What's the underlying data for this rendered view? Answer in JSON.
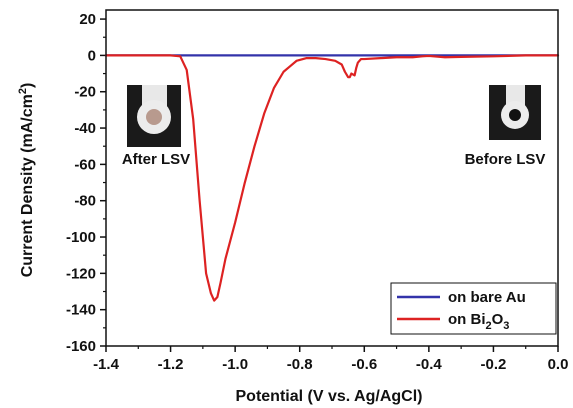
{
  "chart_data": {
    "type": "line",
    "xlabel": "Potential (V vs. Ag/AgCl)",
    "ylabel_main": "Current Density (mA/cm",
    "ylabel_sup": "2",
    "ylabel_close": ")",
    "xlim": [
      -1.4,
      0.0
    ],
    "ylim": [
      -160,
      25
    ],
    "x_ticks": [
      -1.4,
      -1.2,
      -1.0,
      -0.8,
      -0.6,
      -0.4,
      -0.2,
      0.0
    ],
    "x_tick_labels": [
      "-1.4",
      "-1.2",
      "-1.0",
      "-0.8",
      "-0.6",
      "-0.4",
      "-0.2",
      "0.0"
    ],
    "y_ticks": [
      20,
      0,
      -20,
      -40,
      -60,
      -80,
      -100,
      -120,
      -140,
      -160
    ],
    "y_tick_labels": [
      "20",
      "0",
      "-20",
      "-40",
      "-60",
      "-80",
      "-100",
      "-120",
      "-140",
      "-160"
    ],
    "grid": false,
    "legend_position": "bottom-right",
    "series": [
      {
        "name": "on bare Au",
        "color": "#3333aa",
        "x": [
          -1.4,
          -1.2,
          -1.0,
          -0.8,
          -0.6,
          -0.4,
          -0.2,
          0.0
        ],
        "y": [
          0,
          0,
          0,
          0,
          0,
          0,
          0,
          0
        ]
      },
      {
        "name_main": "on Bi",
        "name_sub1": "2",
        "name_mid": "O",
        "name_sub2": "3",
        "color": "#dd2222",
        "x": [
          -1.4,
          -1.2,
          -1.17,
          -1.15,
          -1.13,
          -1.11,
          -1.09,
          -1.075,
          -1.065,
          -1.055,
          -1.045,
          -1.03,
          -1.0,
          -0.97,
          -0.94,
          -0.91,
          -0.88,
          -0.85,
          -0.83,
          -0.81,
          -0.79,
          -0.78,
          -0.77,
          -0.75,
          -0.72,
          -0.69,
          -0.67,
          -0.66,
          -0.65,
          -0.645,
          -0.64,
          -0.63,
          -0.625,
          -0.62,
          -0.61,
          -0.6,
          -0.55,
          -0.5,
          -0.45,
          -0.42,
          -0.4,
          -0.35,
          -0.3,
          -0.2,
          -0.1,
          0.0
        ],
        "y": [
          0,
          0,
          -0.5,
          -8,
          -35,
          -80,
          -120,
          -131,
          -135,
          -133,
          -125,
          -112,
          -92,
          -70,
          -50,
          -32,
          -18,
          -9,
          -6,
          -3,
          -2,
          -1.5,
          -1.5,
          -1.5,
          -2,
          -3,
          -5,
          -9,
          -12,
          -12,
          -10,
          -11,
          -7,
          -4,
          -2,
          -2,
          -1.5,
          -1,
          -1,
          -0.5,
          -0.3,
          -1,
          -0.8,
          -0.5,
          0,
          0
        ]
      }
    ]
  },
  "annotations": {
    "after_label": "After LSV",
    "before_label": "Before LSV"
  },
  "legend": {
    "au_label": "on bare Au",
    "bi_main": "on Bi",
    "bi_sub1": "2",
    "bi_mid": "O",
    "bi_sub2": "3"
  }
}
